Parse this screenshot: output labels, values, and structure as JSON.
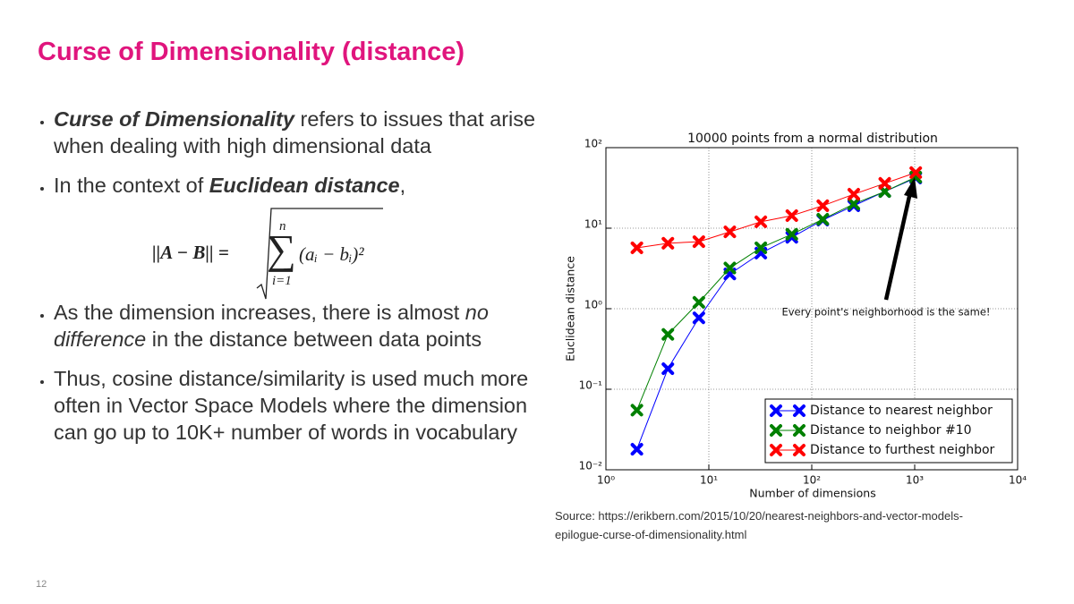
{
  "title": "Curse of Dimensionality (distance)",
  "bullets": [
    [
      {
        "text": "Curse of Dimensionality",
        "style": "bold-italic"
      },
      {
        "text": " refers to issues that arise when dealing with high dimensional data",
        "style": "normal"
      }
    ],
    [
      {
        "text": "In the context of ",
        "style": "normal"
      },
      {
        "text": "Euclidean distance",
        "style": "bold-italic"
      },
      {
        "text": ",",
        "style": "normal"
      }
    ],
    [
      {
        "text": "As the dimension increases, there is almost ",
        "style": "normal"
      },
      {
        "text": "no difference",
        "style": "italic"
      },
      {
        "text": " in the distance between data points",
        "style": "normal"
      }
    ],
    [
      {
        "text": "Thus, cosine distance/similarity is used much more often in Vector Space Models where the dimension can go up to 10K+ number of words in vocabulary",
        "style": "normal"
      }
    ]
  ],
  "formula": {
    "lhs": "||A − B|| =",
    "sum": "∑",
    "upper": "n",
    "lower": "i=1",
    "term": "(aᵢ − bᵢ)²"
  },
  "source": "Source: https://erikbern.com/2015/10/20/nearest-neighbors-and-vector-models-epilogue-curse-of-dimensionality.html",
  "page_number": "12",
  "chart_data": {
    "type": "line",
    "title": "10000 points from a normal distribution",
    "x_label": "Number of dimensions",
    "y_label": "Euclidean distance",
    "annotation": "Every point's neighborhood is the same!",
    "x": [
      2,
      4,
      8,
      16,
      32,
      64,
      128,
      256,
      512,
      1024
    ],
    "series": [
      {
        "name": "Distance to nearest neighbor",
        "color": "#0000ff",
        "values": [
          0.018,
          0.18,
          0.77,
          2.7,
          4.9,
          7.7,
          12.6,
          19,
          28.5,
          42
        ]
      },
      {
        "name": "Distance to neighbor #10",
        "color": "#008000",
        "values": [
          0.055,
          0.48,
          1.2,
          3.2,
          5.7,
          8.4,
          12.9,
          20,
          28.5,
          43
        ]
      },
      {
        "name": "Distance to furthest neighbor",
        "color": "#ff0000",
        "values": [
          5.7,
          6.5,
          6.8,
          9,
          12,
          14.3,
          19,
          26.4,
          36,
          49
        ]
      }
    ],
    "x_log": true,
    "y_log": true,
    "xlim": [
      1,
      10000
    ],
    "xticks": [
      {
        "value": 1,
        "label": "10⁰"
      },
      {
        "value": 10,
        "label": "10¹"
      },
      {
        "value": 100,
        "label": "10²"
      },
      {
        "value": 1000,
        "label": "10³"
      },
      {
        "value": 10000,
        "label": "10⁴"
      }
    ],
    "ylim": [
      0.01,
      100
    ],
    "yticks": [
      {
        "value": 0.01,
        "label": "10⁻²"
      },
      {
        "value": 0.1,
        "label": "10⁻¹"
      },
      {
        "value": 1,
        "label": "10⁰"
      },
      {
        "value": 10,
        "label": "10¹"
      },
      {
        "value": 100,
        "label": "10²"
      }
    ],
    "grid": true,
    "legend": "lower right"
  }
}
